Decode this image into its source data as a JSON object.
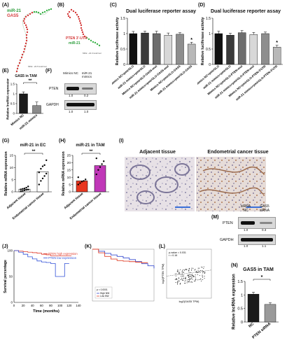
{
  "panels": {
    "A": {
      "letter": "(A)",
      "labels": [
        "miR-21",
        "GAS5"
      ],
      "mfe": "MFE: -20.5 kcal/mol"
    },
    "B": {
      "letter": "(B)",
      "labels": [
        "PTEN 3'-UTR",
        "miR-21"
      ],
      "mfe": "MFE: -22.3 kcal/mol"
    },
    "C": {
      "letter": "(C)",
      "title": "Dual luciferase reporter assay"
    },
    "D": {
      "letter": "(D)",
      "title": "Dual luciferase reporter assay"
    },
    "E": {
      "letter": "(E)",
      "title": "GAS5 in TAM",
      "sig": "**"
    },
    "F": {
      "letter": "(F)",
      "col_labels": [
        "Mimics NC",
        "miR-21 mimics"
      ],
      "rows": [
        {
          "name": "PTEN",
          "values": [
            "1.0",
            "0.2"
          ]
        },
        {
          "name": "GAPDH",
          "values": [
            "1.0",
            "1.0"
          ]
        }
      ]
    },
    "G": {
      "letter": "(G)",
      "title": "miR-21 in EC",
      "sig": "**"
    },
    "H": {
      "letter": "(H)",
      "title": "miR-21 in TAM",
      "sig": "**"
    },
    "I": {
      "letter": "(I)",
      "captions": [
        "Adjacent  tissue",
        "Endometrial cancer tissue"
      ]
    },
    "M": {
      "letter": "(M)",
      "col_labels": [
        "siRNA NC",
        "GAS5 siRNA"
      ],
      "rows": [
        {
          "name": "PTEN",
          "values": [
            "1.0",
            "0.3"
          ]
        },
        {
          "name": "GAPDH",
          "values": [
            "1.0",
            "1.1"
          ]
        }
      ]
    },
    "J": {
      "letter": "(J)",
      "legend": [
        "PTEN high expression",
        "PTEN low expression"
      ]
    },
    "K": {
      "letter": "(K)",
      "legend": [
        "p < 0.0001",
        "High NW",
        "Low NW"
      ]
    },
    "L": {
      "letter": "(L)",
      "stats": [
        "p-value = 0.031",
        "r = 0.16"
      ]
    },
    "N": {
      "letter": "(N)",
      "title": "GAS5 in TAM",
      "sig": "*"
    }
  },
  "chart_data": [
    {
      "id": "C",
      "type": "bar",
      "ylabel": "Relative luciferase activity",
      "ylim": [
        0,
        1.5
      ],
      "yticks": [
        0,
        0.5,
        1.0,
        1.5
      ],
      "categories": [
        "Mimics NC+pmirGLO",
        "miR-21 mimics+pmirGLO",
        "Mimics NC+pmirGLO-GAS5-mut",
        "miR-21 mimics+pmirGLO-GAS5-mut",
        "Mimics NC+pmirGLO-GAS5",
        "miR-21 mimics+pmirGLO-GAS5"
      ],
      "values": [
        1.0,
        1.02,
        1.0,
        0.95,
        0.98,
        0.66
      ],
      "errors": [
        0.07,
        0.06,
        0.08,
        0.07,
        0.05,
        0.06
      ],
      "colors": [
        "#111111",
        "#3a3a3a",
        "#6d6d6d",
        "#d8d8d8",
        "#8e8e8e",
        "#b8b8b8"
      ],
      "sig": [
        "",
        "",
        "",
        "",
        "",
        "*"
      ]
    },
    {
      "id": "D",
      "type": "bar",
      "ylabel": "Relative luciferase activity",
      "ylim": [
        0,
        1.5
      ],
      "yticks": [
        0,
        0.5,
        1.0,
        1.5
      ],
      "categories": [
        "Mimics NC+pmirGLO",
        "miR-21 mimics+pmirGLO",
        "Mimics NC+pmirGLO-PTEN-mut",
        "miR-21 mimics+pmirGLO-PTEN-mut",
        "Mimics NC+pmirGLO-PTEN-3'UTR",
        "miR-21 mimics+pmirGLO-PTEN-3'UTR"
      ],
      "values": [
        1.0,
        0.95,
        1.03,
        0.97,
        1.0,
        0.56
      ],
      "errors": [
        0.08,
        0.06,
        0.07,
        0.07,
        0.05,
        0.06
      ],
      "colors": [
        "#111111",
        "#3a3a3a",
        "#6d6d6d",
        "#d8d8d8",
        "#8e8e8e",
        "#b8b8b8"
      ],
      "sig": [
        "",
        "",
        "",
        "",
        "",
        "*"
      ]
    },
    {
      "id": "E",
      "type": "bar",
      "ylabel": "Relative lncRNA expression",
      "ylim": [
        0,
        1.5
      ],
      "yticks": [
        0,
        0.5,
        1.0,
        1.5
      ],
      "categories": [
        "Mimics NC",
        "miR-21 mimics"
      ],
      "values": [
        1.0,
        0.4
      ],
      "errors": [
        0.1,
        0.18
      ],
      "colors": [
        "#1b1b1b",
        "#8a8a8a"
      ]
    },
    {
      "id": "G",
      "type": "scatter",
      "ylabel": "Relative mRNA expression",
      "ylim": [
        0,
        15
      ],
      "yticks": [
        0,
        5,
        10,
        15
      ],
      "categories": [
        "Adjacent tissue",
        "Endometrial cancer tissue"
      ],
      "bars": [
        1.1,
        8.3
      ],
      "points": [
        [
          0.2,
          0.4,
          0.6,
          0.8,
          0.9,
          1.0,
          1.2,
          1.4,
          1.7,
          2.2
        ],
        [
          3.0,
          4.5,
          5.5,
          6.5,
          7.5,
          8.0,
          9.5,
          10.5,
          11.0,
          13.0
        ]
      ],
      "colors": [
        "#ffffff",
        "#ffffff"
      ]
    },
    {
      "id": "H",
      "type": "scatter",
      "ylabel": "Relative mRNA expression",
      "ylim": [
        0,
        25
      ],
      "yticks": [
        0,
        5,
        10,
        15,
        20,
        25
      ],
      "categories": [
        "Adjacent tissue",
        "Endometrial cancer tissue"
      ],
      "bars": [
        7.5,
        18.0
      ],
      "points": [
        [
          5.0,
          6.0,
          7.0,
          7.5,
          8.5,
          10.0
        ],
        [
          12.0,
          15.0,
          17.0,
          19.0,
          21.0,
          23.0
        ]
      ],
      "colors": [
        "#e8361f",
        "#c038b8"
      ]
    },
    {
      "id": "J",
      "type": "line",
      "xlabel": "Time (months)",
      "ylabel": "Survival percentage",
      "xlim": [
        0,
        140
      ],
      "ylim": [
        0,
        100
      ],
      "xticks": [
        0,
        20,
        40,
        60,
        80,
        100,
        120,
        140
      ],
      "yticks": [
        0,
        50,
        100
      ],
      "series": [
        {
          "name": "PTEN high expression",
          "color": "#e03a2a",
          "x": [
            0,
            10,
            20,
            30,
            40,
            50,
            60,
            70,
            80,
            90,
            100,
            110,
            120,
            125
          ],
          "y": [
            100,
            99,
            98,
            97,
            96,
            95,
            93,
            92,
            90,
            90,
            90,
            90,
            90,
            90
          ]
        },
        {
          "name": "PTEN low expression",
          "color": "#3050d8",
          "x": [
            0,
            10,
            20,
            30,
            40,
            50,
            60,
            70,
            80,
            90,
            100,
            110,
            120
          ],
          "y": [
            100,
            97,
            93,
            88,
            84,
            80,
            78,
            77,
            75,
            50,
            50,
            75,
            75
          ]
        }
      ]
    },
    {
      "id": "K",
      "type": "line",
      "xlim": [
        0,
        10
      ],
      "ylim": [
        0,
        1
      ],
      "series": [
        {
          "name": "High NW",
          "color": "#3a4fd0",
          "x": [
            0,
            1,
            2,
            3,
            4,
            5,
            6,
            7,
            8,
            9,
            10
          ],
          "y": [
            1.0,
            0.96,
            0.92,
            0.89,
            0.86,
            0.83,
            0.8,
            0.76,
            0.72,
            0.68,
            0.63
          ]
        },
        {
          "name": "Low NW",
          "color": "#e0452f",
          "x": [
            0,
            1,
            2,
            3,
            4,
            5,
            6,
            7,
            8,
            9
          ],
          "y": [
            1.0,
            0.93,
            0.86,
            0.81,
            0.78,
            0.77,
            0.76,
            0.75,
            0.74,
            0.74
          ]
        }
      ]
    },
    {
      "id": "L",
      "type": "scatter",
      "xlabel": "log2(GAS5 TPM)",
      "ylabel": "log2(PTEN TPM)",
      "xlim": [
        0,
        8
      ],
      "ylim": [
        0,
        8
      ],
      "xticks": [
        0,
        2,
        4,
        6,
        8
      ],
      "yticks": [
        0,
        2,
        4,
        6,
        8
      ],
      "points_count": 160,
      "trend": [
        [
          0,
          3.6
        ],
        [
          8,
          4.6
        ]
      ]
    },
    {
      "id": "N",
      "type": "bar",
      "ylabel": "Relative lncRNA expression",
      "ylim": [
        0,
        1.5
      ],
      "yticks": [
        0,
        0.5,
        1.0,
        1.5
      ],
      "categories": [
        "NC",
        "PTEN siRNA"
      ],
      "values": [
        1.03,
        0.65
      ],
      "errors": [
        0.07,
        0.06
      ],
      "colors": [
        "#1b1b1b",
        "#9a9a9a"
      ]
    }
  ]
}
